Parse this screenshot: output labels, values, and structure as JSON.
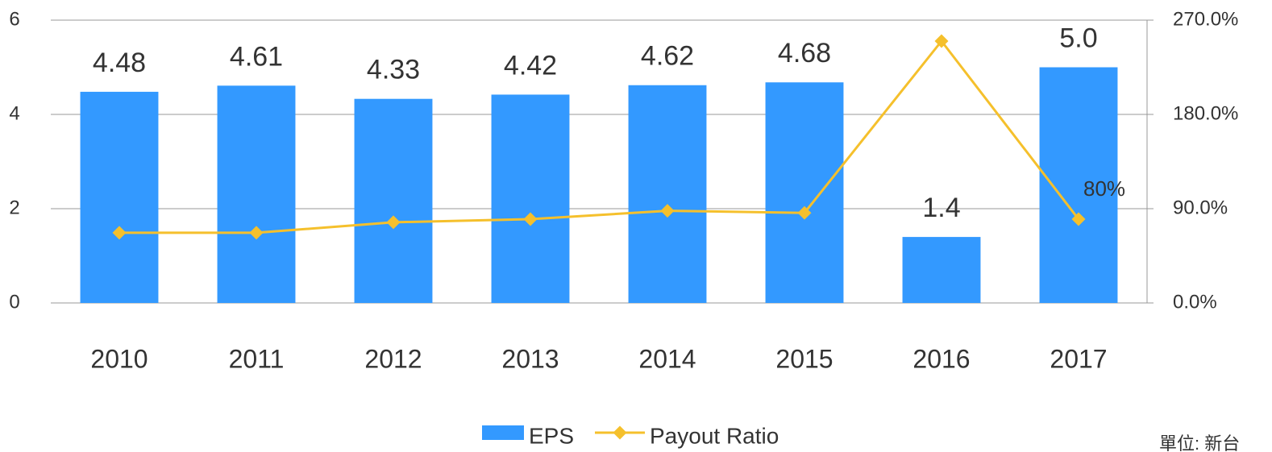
{
  "chart_data": {
    "type": "bar_line",
    "categories": [
      "2010",
      "2011",
      "2012",
      "2013",
      "2014",
      "2015",
      "2016",
      "2017"
    ],
    "series": [
      {
        "name": "EPS",
        "color": "#3399ff",
        "values": [
          4.48,
          4.61,
          4.33,
          4.42,
          4.62,
          4.68,
          1.4,
          5.0
        ],
        "value_labels": [
          "4.48",
          "4.61",
          "4.33",
          "4.42",
          "4.62",
          "4.68",
          "1.4",
          "5.0"
        ]
      },
      {
        "name": "Payout Ratio",
        "color": "#f5c02c",
        "axis": "y2",
        "values": [
          67,
          67,
          77,
          80,
          88,
          86,
          250,
          80
        ],
        "value_labels": [
          null,
          null,
          null,
          null,
          null,
          null,
          null,
          "80%"
        ]
      }
    ],
    "ylim": [
      0,
      6
    ],
    "yticks": [
      0,
      2,
      4,
      6
    ],
    "y2lim": [
      0,
      270
    ],
    "y2ticks": [
      {
        "value": 0,
        "label": "0.0%"
      },
      {
        "value": 90,
        "label": "90.0%"
      },
      {
        "value": 180,
        "label": "180.0%"
      },
      {
        "value": 270,
        "label": "270.0%"
      }
    ],
    "grid": true,
    "legend": "bottom",
    "note": "單位: 新台"
  }
}
